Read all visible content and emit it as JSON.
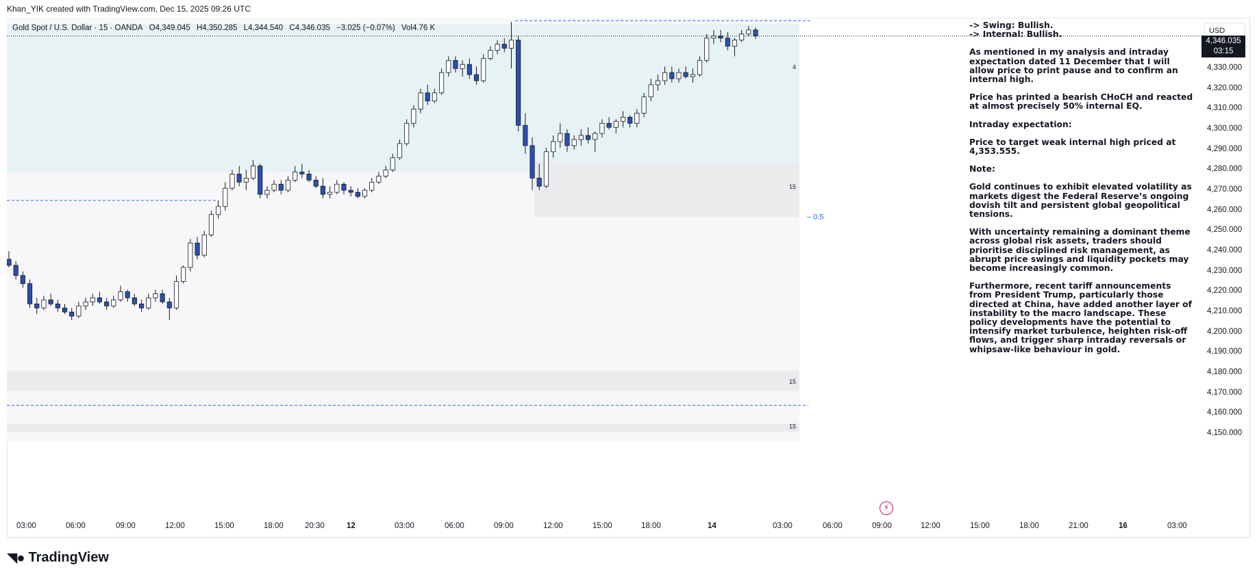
{
  "header": {
    "attribution": "Khan_YIK created with TradingView.com, Dec 15, 2025 09:26 UTC",
    "symbol": "Gold Spot / U.S. Dollar · 15 · OANDA",
    "open": "O4,349.045",
    "high": "H4,350.285",
    "low": "L4,344.540",
    "close": "C4,346.035",
    "change": "−3.025 (−0.07%)",
    "volume": "Vol4.76 K"
  },
  "currency": "USD",
  "last_price": {
    "value": "4,346.035",
    "countdown": "03:15"
  },
  "notes": {
    "swing": "-> Swing: Bullish.",
    "internal": "-> Internal: Bullish.",
    "p1": "As mentioned in my analysis and intraday expectation dated 11 December that I will allow price to print pause and to confirm an internal high.",
    "p2": "Price has printed a bearish CHoCH and reacted at almost precisely 50% internal EQ.",
    "p3": "Intraday expectation:",
    "p4": "Price to target weak internal high priced at 4,353.555.",
    "p5": "Note:",
    "p6": "Gold continues to exhibit elevated volatility as markets digest the Federal Reserve’s ongoing dovish tilt and persistent global geopolitical tensions.",
    "p7": "With uncertainty remaining a dominant theme across global risk assets, traders should prioritise disciplined risk management, as abrupt price swings and liquidity pockets may become increasingly common.",
    "p8": "Furthermore, recent tariff announcements from President Trump, particularly those directed at China, have added another layer of instability to the macro landscape. These policy developments have the potential to intensify market turbulence, heighten risk-off flows, and trigger sharp intraday reversals or whipsaw-like behaviour in gold."
  },
  "brand": "TradingView",
  "chart_data": {
    "type": "candlestick",
    "ylim": [
      4146,
      4355
    ],
    "y_ticks": [
      4150,
      4160,
      4170,
      4180,
      4190,
      4200,
      4210,
      4220,
      4230,
      4240,
      4250,
      4260,
      4270,
      4280,
      4290,
      4300,
      4310,
      4320,
      4330
    ],
    "y_tick_labels": [
      "4,150.000",
      "4,160.000",
      "4,170.000",
      "4,180.000",
      "4,190.000",
      "4,200.000",
      "4,210.000",
      "4,220.000",
      "4,230.000",
      "4,240.000",
      "4,250.000",
      "4,260.000",
      "4,270.000",
      "4,280.000",
      "4,290.000",
      "4,300.000",
      "4,310.000",
      "4,320.000",
      "4,330.000"
    ],
    "x_tick_labels": [
      "03:00",
      "06:00",
      "09:00",
      "12:00",
      "15:00",
      "18:00",
      "20:30",
      "12",
      "03:00",
      "06:00",
      "09:00",
      "12:00",
      "15:00",
      "18:00",
      "14",
      "03:00",
      "06:00",
      "09:00",
      "12:00",
      "15:00",
      "18:00",
      "21:00",
      "16",
      "03:00"
    ],
    "x_bold_labels": [
      "12",
      "14",
      "16"
    ],
    "zones": [
      {
        "from": 4279,
        "to": 4352,
        "color": "#e6f2f3"
      },
      {
        "from": 4257,
        "to": 4284,
        "color": "#ebebee"
      },
      {
        "from": 4171,
        "to": 4181,
        "color": "#ebebee"
      },
      {
        "from": 4151,
        "to": 4155,
        "color": "#ebebee"
      }
    ],
    "zone_labels": [
      {
        "text": "4",
        "price": 4331
      },
      {
        "text": "15",
        "price": 4272
      },
      {
        "text": "15",
        "price": 4176
      },
      {
        "text": "15",
        "price": 4154
      }
    ],
    "levels": [
      {
        "price": 4353.555,
        "style": "dashed"
      },
      {
        "price": 4265,
        "style": "dashed"
      },
      {
        "price": 4164,
        "style": "dashed"
      },
      {
        "price": 4346.035,
        "style": "dotted"
      }
    ],
    "eq_label": "0.5",
    "eq_price": 4257,
    "ohlc_points": [
      [
        4236,
        4240,
        4232,
        4233
      ],
      [
        4233,
        4235,
        4226,
        4228
      ],
      [
        4228,
        4230,
        4222,
        4224
      ],
      [
        4224,
        4226,
        4212,
        4214
      ],
      [
        4214,
        4217,
        4209,
        4212
      ],
      [
        4212,
        4218,
        4211,
        4216
      ],
      [
        4216,
        4219,
        4213,
        4214
      ],
      [
        4214,
        4216,
        4210,
        4212
      ],
      [
        4212,
        4214,
        4209,
        4210
      ],
      [
        4210,
        4212,
        4206,
        4208
      ],
      [
        4208,
        4215,
        4207,
        4213
      ],
      [
        4213,
        4217,
        4211,
        4215
      ],
      [
        4215,
        4219,
        4213,
        4217
      ],
      [
        4217,
        4220,
        4214,
        4215
      ],
      [
        4215,
        4217,
        4211,
        4213
      ],
      [
        4213,
        4218,
        4212,
        4216
      ],
      [
        4216,
        4223,
        4215,
        4220
      ],
      [
        4220,
        4221,
        4215,
        4217
      ],
      [
        4217,
        4219,
        4213,
        4214
      ],
      [
        4214,
        4216,
        4210,
        4212
      ],
      [
        4212,
        4219,
        4211,
        4217
      ],
      [
        4217,
        4221,
        4215,
        4219
      ],
      [
        4219,
        4221,
        4214,
        4215
      ],
      [
        4215,
        4217,
        4206,
        4212
      ],
      [
        4212,
        4228,
        4211,
        4225
      ],
      [
        4225,
        4233,
        4224,
        4232
      ],
      [
        4232,
        4246,
        4230,
        4244
      ],
      [
        4244,
        4247,
        4236,
        4238
      ],
      [
        4238,
        4250,
        4237,
        4248
      ],
      [
        4248,
        4260,
        4247,
        4258
      ],
      [
        4258,
        4265,
        4256,
        4262
      ],
      [
        4262,
        4274,
        4260,
        4271
      ],
      [
        4271,
        4280,
        4270,
        4278
      ],
      [
        4278,
        4282,
        4272,
        4274
      ],
      [
        4274,
        4280,
        4270,
        4276
      ],
      [
        4276,
        4285,
        4275,
        4282
      ],
      [
        4282,
        4283,
        4266,
        4268
      ],
      [
        4268,
        4272,
        4266,
        4270
      ],
      [
        4270,
        4275,
        4269,
        4273
      ],
      [
        4273,
        4275,
        4268,
        4270
      ],
      [
        4270,
        4277,
        4269,
        4275
      ],
      [
        4275,
        4282,
        4274,
        4279
      ],
      [
        4279,
        4283,
        4276,
        4278
      ],
      [
        4278,
        4280,
        4274,
        4275
      ],
      [
        4275,
        4277,
        4271,
        4272
      ],
      [
        4272,
        4276,
        4266,
        4268
      ],
      [
        4268,
        4272,
        4266,
        4269
      ],
      [
        4269,
        4275,
        4268,
        4273
      ],
      [
        4273,
        4274,
        4268,
        4270
      ],
      [
        4270,
        4272,
        4267,
        4269
      ],
      [
        4269,
        4271,
        4266,
        4267
      ],
      [
        4267,
        4271,
        4266,
        4270
      ],
      [
        4270,
        4276,
        4269,
        4274
      ],
      [
        4274,
        4279,
        4273,
        4277
      ],
      [
        4277,
        4282,
        4276,
        4280
      ],
      [
        4280,
        4288,
        4279,
        4286
      ],
      [
        4286,
        4295,
        4285,
        4293
      ],
      [
        4293,
        4305,
        4292,
        4303
      ],
      [
        4303,
        4312,
        4301,
        4310
      ],
      [
        4310,
        4320,
        4308,
        4318
      ],
      [
        4318,
        4322,
        4312,
        4314
      ],
      [
        4314,
        4320,
        4313,
        4318
      ],
      [
        4318,
        4330,
        4317,
        4328
      ],
      [
        4328,
        4336,
        4326,
        4334
      ],
      [
        4334,
        4336,
        4328,
        4330
      ],
      [
        4330,
        4334,
        4326,
        4332
      ],
      [
        4332,
        4335,
        4325,
        4327
      ],
      [
        4327,
        4331,
        4322,
        4324
      ],
      [
        4324,
        4337,
        4323,
        4335
      ],
      [
        4335,
        4341,
        4334,
        4339
      ],
      [
        4339,
        4344,
        4337,
        4342
      ],
      [
        4342,
        4345,
        4338,
        4340
      ],
      [
        4340,
        4353,
        4330,
        4344
      ],
      [
        4344,
        4346,
        4299,
        4302
      ],
      [
        4302,
        4308,
        4288,
        4292
      ],
      [
        4292,
        4296,
        4270,
        4276
      ],
      [
        4276,
        4283,
        4270,
        4272
      ],
      [
        4272,
        4291,
        4271,
        4289
      ],
      [
        4289,
        4297,
        4286,
        4294
      ],
      [
        4294,
        4303,
        4291,
        4298
      ],
      [
        4298,
        4300,
        4289,
        4292
      ],
      [
        4292,
        4297,
        4290,
        4295
      ],
      [
        4295,
        4300,
        4292,
        4297
      ],
      [
        4297,
        4301,
        4293,
        4295
      ],
      [
        4295,
        4299,
        4289,
        4298
      ],
      [
        4298,
        4305,
        4296,
        4303
      ],
      [
        4303,
        4306,
        4300,
        4301
      ],
      [
        4301,
        4305,
        4298,
        4304
      ],
      [
        4304,
        4309,
        4301,
        4306
      ],
      [
        4306,
        4307,
        4301,
        4303
      ],
      [
        4303,
        4310,
        4301,
        4308
      ],
      [
        4308,
        4318,
        4306,
        4316
      ],
      [
        4316,
        4325,
        4314,
        4322
      ],
      [
        4322,
        4327,
        4319,
        4324
      ],
      [
        4324,
        4331,
        4322,
        4328
      ],
      [
        4328,
        4331,
        4323,
        4325
      ],
      [
        4325,
        4330,
        4323,
        4328
      ],
      [
        4328,
        4331,
        4325,
        4326
      ],
      [
        4326,
        4330,
        4323,
        4327
      ],
      [
        4327,
        4336,
        4326,
        4334
      ],
      [
        4334,
        4347,
        4333,
        4345
      ],
      [
        4345,
        4349,
        4342,
        4346
      ],
      [
        4346,
        4349,
        4343,
        4345
      ],
      [
        4345,
        4348,
        4339,
        4341
      ],
      [
        4341,
        4345,
        4336,
        4344
      ],
      [
        4344,
        4349,
        4343,
        4347
      ],
      [
        4347,
        4351,
        4346,
        4349
      ],
      [
        4349,
        4350.285,
        4344.54,
        4346.035
      ]
    ],
    "candle_colors": {
      "up": "#ffffff",
      "down": "#2b4fb0",
      "wick": "#131722"
    },
    "grid": false,
    "legend": "top-left"
  }
}
